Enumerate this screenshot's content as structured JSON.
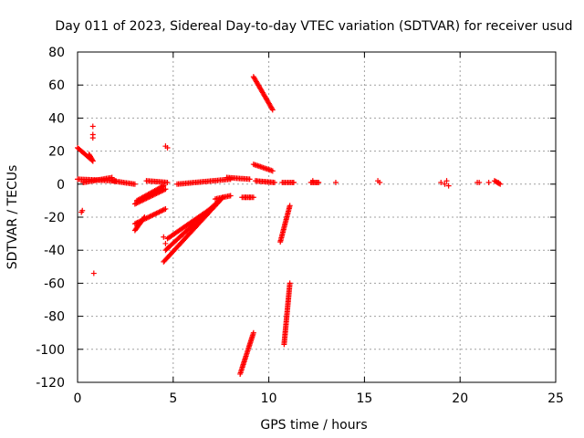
{
  "chart_data": {
    "type": "scatter",
    "title": "Day 011 of 2023, Sidereal Day-to-day VTEC variation (SDTVAR) for receiver usud",
    "xlabel": "GPS time / hours",
    "ylabel": "SDTVAR / TECUs",
    "xlim": [
      0,
      25
    ],
    "ylim": [
      -120,
      80
    ],
    "xticks": [
      0,
      5,
      10,
      15,
      20,
      25
    ],
    "yticks": [
      -120,
      -100,
      -80,
      -60,
      -40,
      -20,
      0,
      20,
      40,
      60,
      80
    ],
    "grid": true,
    "marker": "+",
    "color": "#ff0000",
    "segments": [
      {
        "x0": 0.0,
        "x1": 2.0,
        "y0": 3,
        "y1": 2
      },
      {
        "x0": 0.3,
        "x1": 1.8,
        "y0": 1,
        "y1": 4
      },
      {
        "x0": 1.8,
        "x1": 3.0,
        "y0": 2,
        "y1": 0
      },
      {
        "x0": 3.6,
        "x1": 4.7,
        "y0": 2,
        "y1": 1
      },
      {
        "x0": 5.2,
        "x1": 8.0,
        "y0": 0,
        "y1": 3
      },
      {
        "x0": 7.8,
        "x1": 9.0,
        "y0": 4,
        "y1": 3
      },
      {
        "x0": 0.0,
        "x1": 0.8,
        "y0": 22,
        "y1": 14
      },
      {
        "x0": 0.6,
        "x1": 0.8,
        "y0": 18,
        "y1": 14
      },
      {
        "x0": 3.0,
        "x1": 4.6,
        "y0": -12,
        "y1": -3
      },
      {
        "x0": 3.1,
        "x1": 4.5,
        "y0": -10,
        "y1": -1
      },
      {
        "x0": 3.0,
        "x1": 3.5,
        "y0": -28,
        "y1": -20
      },
      {
        "x0": 3.0,
        "x1": 4.6,
        "y0": -24,
        "y1": -15
      },
      {
        "x0": 4.5,
        "x1": 7.6,
        "y0": -47,
        "y1": -8
      },
      {
        "x0": 4.6,
        "x1": 7.4,
        "y0": -40,
        "y1": -10
      },
      {
        "x0": 4.7,
        "x1": 7.2,
        "y0": -33,
        "y1": -13
      },
      {
        "x0": 7.2,
        "x1": 8.0,
        "y0": -9,
        "y1": -7
      },
      {
        "x0": 8.6,
        "x1": 9.2,
        "y0": -8,
        "y1": -8
      },
      {
        "x0": 9.2,
        "x1": 10.2,
        "y0": 65,
        "y1": 45
      },
      {
        "x0": 9.2,
        "x1": 10.2,
        "y0": 12,
        "y1": 8
      },
      {
        "x0": 9.3,
        "x1": 10.3,
        "y0": 2,
        "y1": 1
      },
      {
        "x0": 8.5,
        "x1": 9.2,
        "y0": -115,
        "y1": -90
      },
      {
        "x0": 10.6,
        "x1": 11.1,
        "y0": -35,
        "y1": -13
      },
      {
        "x0": 10.8,
        "x1": 11.1,
        "y0": -97,
        "y1": -60
      },
      {
        "x0": 10.7,
        "x1": 11.3,
        "y0": 1,
        "y1": 1
      },
      {
        "x0": 12.2,
        "x1": 12.6,
        "y0": 1,
        "y1": 1
      },
      {
        "x0": 21.8,
        "x1": 22.1,
        "y0": 2,
        "y1": 0
      }
    ],
    "points": [
      [
        0.2,
        -17
      ],
      [
        0.25,
        -16
      ],
      [
        0.8,
        35
      ],
      [
        0.8,
        30
      ],
      [
        0.8,
        28
      ],
      [
        0.85,
        -54
      ],
      [
        4.6,
        23
      ],
      [
        4.7,
        22
      ],
      [
        4.6,
        -36
      ],
      [
        4.5,
        -32
      ],
      [
        8.8,
        -8
      ],
      [
        9.0,
        -8
      ],
      [
        11.3,
        1
      ],
      [
        12.3,
        2
      ],
      [
        12.6,
        1
      ],
      [
        13.5,
        1
      ],
      [
        15.7,
        2
      ],
      [
        15.8,
        1
      ],
      [
        19.0,
        1
      ],
      [
        19.2,
        0
      ],
      [
        19.3,
        2
      ],
      [
        19.4,
        -1
      ],
      [
        20.9,
        1
      ],
      [
        21.0,
        1
      ],
      [
        21.5,
        1
      ],
      [
        22.0,
        1
      ]
    ]
  }
}
